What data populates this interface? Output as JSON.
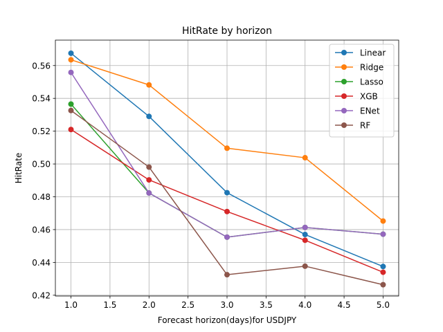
{
  "chart_data": {
    "type": "line",
    "title": "HitRate by horizon",
    "xlabel": "Forecast horizon(days)for USDJPY",
    "ylabel": "HitRate",
    "x": [
      1.0,
      2.0,
      3.0,
      4.0,
      5.0
    ],
    "xlim": [
      0.8,
      5.2
    ],
    "ylim": [
      0.4195,
      0.5755
    ],
    "xticks": [
      1.0,
      1.5,
      2.0,
      2.5,
      3.0,
      3.5,
      4.0,
      4.5,
      5.0
    ],
    "xtick_labels": [
      "1.0",
      "1.5",
      "2.0",
      "2.5",
      "3.0",
      "3.5",
      "4.0",
      "4.5",
      "5.0"
    ],
    "yticks": [
      0.42,
      0.44,
      0.46,
      0.48,
      0.5,
      0.52,
      0.54,
      0.56
    ],
    "ytick_labels": [
      "0.42",
      "0.44",
      "0.46",
      "0.48",
      "0.50",
      "0.52",
      "0.54",
      "0.56"
    ],
    "grid": true,
    "legend_position": "top-right",
    "series": [
      {
        "name": "Linear",
        "color": "#1f77b4",
        "values": [
          0.5675,
          0.529,
          0.4825,
          0.457,
          0.4375
        ]
      },
      {
        "name": "Ridge",
        "color": "#ff7f0e",
        "values": [
          0.5635,
          0.5482,
          0.5096,
          0.5038,
          0.4652
        ]
      },
      {
        "name": "Lasso",
        "color": "#2ca02c",
        "values": [
          0.5365,
          0.4823,
          0.4554,
          0.4613,
          0.4572
        ]
      },
      {
        "name": "XGB",
        "color": "#d62728",
        "values": [
          0.521,
          0.4903,
          0.471,
          0.4535,
          0.434
        ]
      },
      {
        "name": "ENet",
        "color": "#9467bd",
        "values": [
          0.5558,
          0.4823,
          0.4554,
          0.4613,
          0.4572
        ]
      },
      {
        "name": "RF",
        "color": "#8c564b",
        "values": [
          0.5326,
          0.4981,
          0.4325,
          0.4377,
          0.4264
        ]
      }
    ]
  }
}
